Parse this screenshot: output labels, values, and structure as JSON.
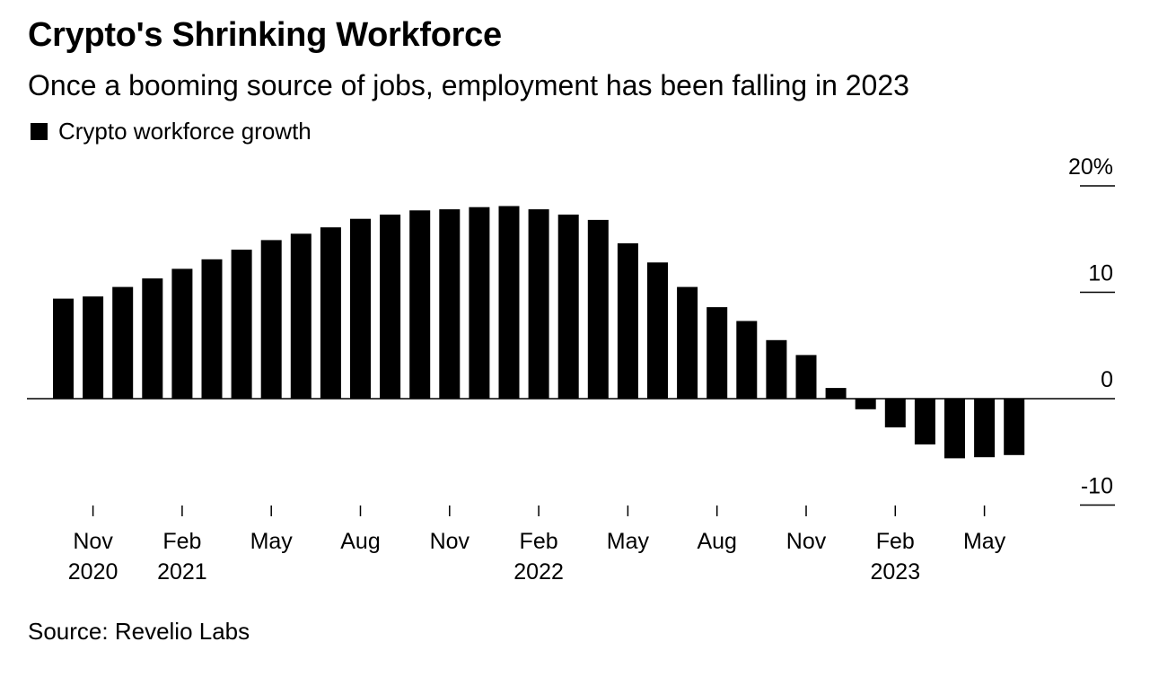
{
  "title": "Crypto's Shrinking Workforce",
  "subtitle": "Once a booming source of jobs, employment has been falling in 2023",
  "legend_label": "Crypto workforce growth",
  "source": "Source: Revelio Labs",
  "chart_data": {
    "type": "bar",
    "title": "Crypto's Shrinking Workforce",
    "xlabel": "",
    "ylabel": "",
    "ylim": [
      -10,
      20
    ],
    "yticks": [
      {
        "value": 20,
        "label": "20%"
      },
      {
        "value": 10,
        "label": "10"
      },
      {
        "value": 0,
        "label": "0"
      },
      {
        "value": -10,
        "label": "-10"
      }
    ],
    "categories": [
      "Oct 2020",
      "Nov 2020",
      "Dec 2020",
      "Jan 2021",
      "Feb 2021",
      "Mar 2021",
      "Apr 2021",
      "May 2021",
      "Jun 2021",
      "Jul 2021",
      "Aug 2021",
      "Sep 2021",
      "Oct 2021",
      "Nov 2021",
      "Dec 2021",
      "Jan 2022",
      "Feb 2022",
      "Mar 2022",
      "Apr 2022",
      "May 2022",
      "Jun 2022",
      "Jul 2022",
      "Aug 2022",
      "Sep 2022",
      "Oct 2022",
      "Nov 2022",
      "Dec 2022",
      "Jan 2023",
      "Feb 2023",
      "Mar 2023",
      "Apr 2023",
      "May 2023",
      "Jun 2023"
    ],
    "series": [
      {
        "name": "Crypto workforce growth",
        "color": "#000000",
        "values": [
          9.4,
          9.6,
          10.5,
          11.3,
          12.2,
          13.1,
          14.0,
          14.9,
          15.5,
          16.1,
          16.9,
          17.3,
          17.7,
          17.8,
          18.0,
          18.1,
          17.8,
          17.3,
          16.8,
          14.6,
          12.8,
          10.5,
          8.6,
          7.3,
          5.5,
          4.1,
          1.0,
          -1.0,
          -2.7,
          -4.3,
          -5.6,
          -5.5,
          -5.3
        ]
      }
    ],
    "xticks": [
      {
        "index": 1,
        "line1": "Nov",
        "line2": "2020"
      },
      {
        "index": 4,
        "line1": "Feb",
        "line2": "2021"
      },
      {
        "index": 7,
        "line1": "May",
        "line2": ""
      },
      {
        "index": 10,
        "line1": "Aug",
        "line2": ""
      },
      {
        "index": 13,
        "line1": "Nov",
        "line2": ""
      },
      {
        "index": 16,
        "line1": "Feb",
        "line2": "2022"
      },
      {
        "index": 19,
        "line1": "May",
        "line2": ""
      },
      {
        "index": 22,
        "line1": "Aug",
        "line2": ""
      },
      {
        "index": 25,
        "line1": "Nov",
        "line2": ""
      },
      {
        "index": 28,
        "line1": "Feb",
        "line2": "2023"
      },
      {
        "index": 31,
        "line1": "May",
        "line2": ""
      }
    ],
    "grid": false,
    "legend_position": "top-left"
  }
}
